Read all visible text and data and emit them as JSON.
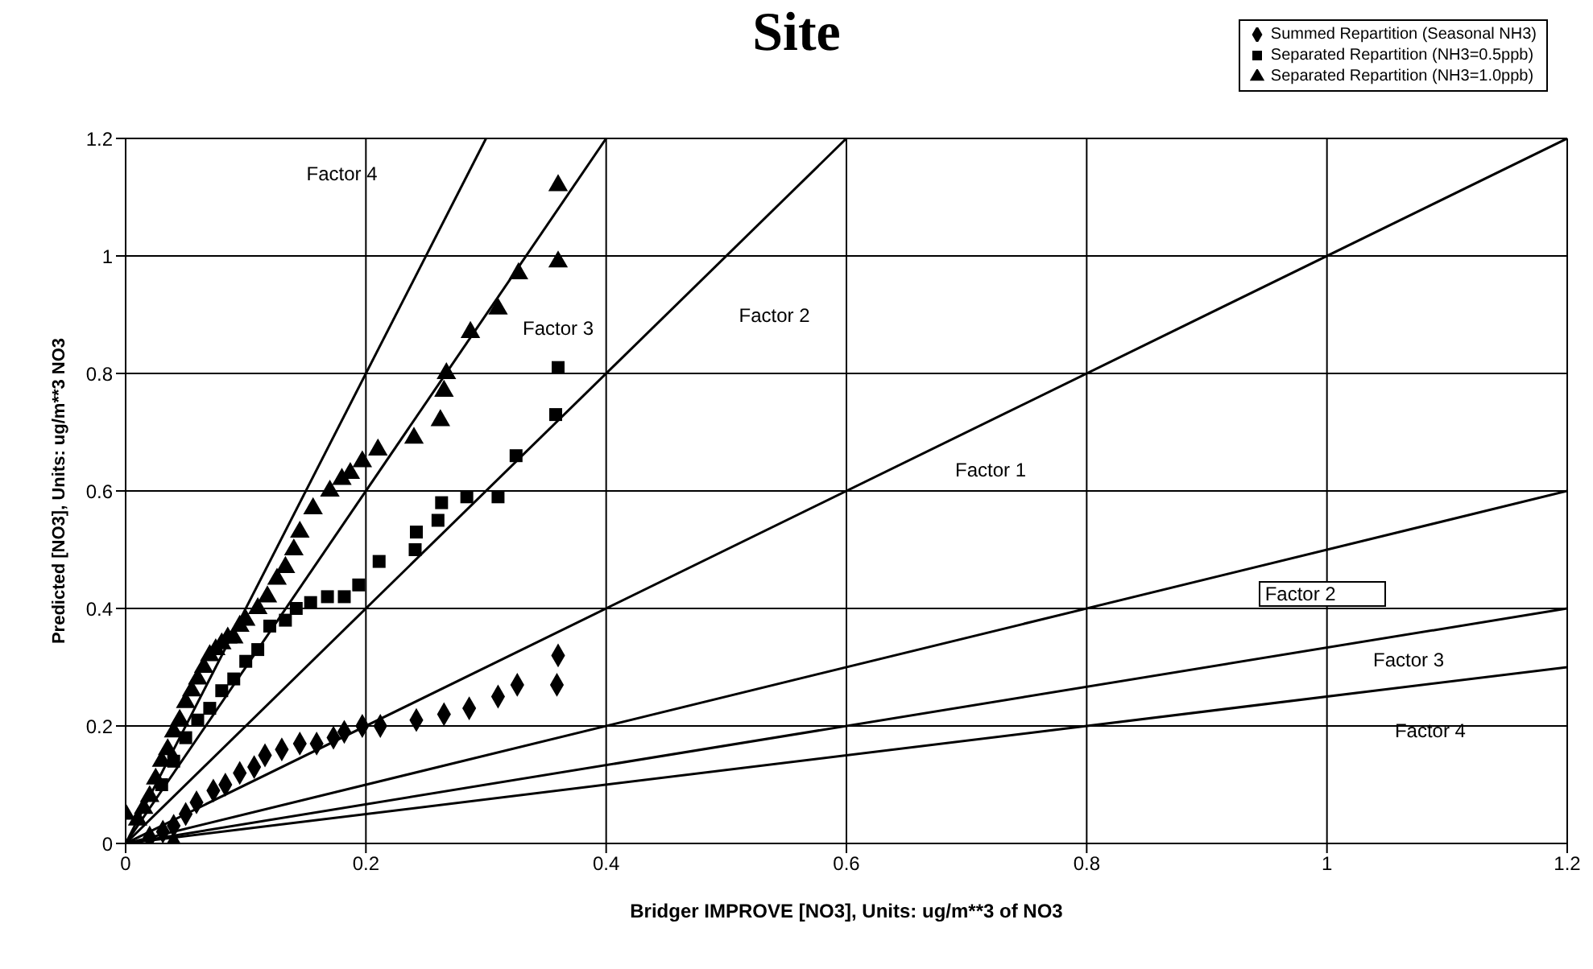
{
  "chart_data": {
    "type": "scatter",
    "title": "Site",
    "xlabel": "Bridger IMPROVE [NO3], Units: ug/m**3 of NO3",
    "ylabel": "Predicted [NO3], Units: ug/m**3 NO3",
    "xlim": [
      0,
      1.2
    ],
    "xticks": [
      0,
      0.2,
      0.4,
      0.6,
      0.8,
      1,
      1.2
    ],
    "ylim": [
      0,
      1.2
    ],
    "yticks": [
      0,
      0.2,
      0.4,
      0.6,
      0.8,
      1,
      1.2
    ],
    "grid": true,
    "legend": "top right",
    "series": [
      {
        "name": "Summed Repartition (Seasonal NH3)",
        "color": "#000000",
        "marker": "diamond",
        "x": [
          0.36,
          0.359,
          0.326,
          0.31,
          0.286,
          0.265,
          0.242,
          0.212,
          0.197,
          0.182,
          0.173,
          0.159,
          0.145,
          0.13,
          0.116,
          0.107,
          0.095,
          0.083,
          0.073,
          0.059,
          0.05,
          0.04,
          0.031,
          0.02,
          0.04
        ],
        "values": [
          0.32,
          0.27,
          0.27,
          0.25,
          0.23,
          0.22,
          0.21,
          0.2,
          0.2,
          0.19,
          0.18,
          0.17,
          0.17,
          0.16,
          0.15,
          0.13,
          0.12,
          0.1,
          0.09,
          0.07,
          0.05,
          0.03,
          0.02,
          0.01,
          0
        ]
      },
      {
        "name": "Separated Repartition (NH3=0.5ppb)",
        "color": "#000000",
        "marker": "square",
        "x": [
          0.36,
          0.358,
          0.325,
          0.31,
          0.284,
          0.263,
          0.26,
          0.242,
          0.241,
          0.211,
          0.194,
          0.182,
          0.168,
          0.154,
          0.142,
          0.133,
          0.12,
          0.11,
          0.1,
          0.09,
          0.08,
          0.07,
          0.06,
          0.05,
          0.04,
          0.03
        ],
        "values": [
          0.81,
          0.73,
          0.66,
          0.59,
          0.59,
          0.58,
          0.55,
          0.53,
          0.5,
          0.48,
          0.44,
          0.42,
          0.42,
          0.41,
          0.4,
          0.38,
          0.37,
          0.33,
          0.31,
          0.28,
          0.26,
          0.23,
          0.21,
          0.18,
          0.14,
          0.1
        ]
      },
      {
        "name": "Separated Repartition (NH3=1.0ppb)",
        "color": "#000000",
        "marker": "triangle",
        "x": [
          0.36,
          0.36,
          0.327,
          0.31,
          0.287,
          0.267,
          0.265,
          0.262,
          0.24,
          0.21,
          0.197,
          0.187,
          0.18,
          0.17,
          0.156,
          0.145,
          0.14,
          0.133,
          0.126,
          0.118,
          0.11,
          0.1,
          0.095,
          0.09,
          0.085,
          0.08,
          0.075,
          0.07,
          0.065,
          0.06,
          0.055,
          0.05,
          0.045,
          0.04,
          0.035,
          0.03,
          0.025,
          0.02,
          0.015,
          0.01,
          0
        ],
        "values": [
          1.12,
          0.99,
          0.97,
          0.91,
          0.87,
          0.8,
          0.77,
          0.72,
          0.69,
          0.67,
          0.65,
          0.63,
          0.62,
          0.6,
          0.57,
          0.53,
          0.5,
          0.47,
          0.45,
          0.42,
          0.4,
          0.38,
          0.37,
          0.35,
          0.35,
          0.34,
          0.33,
          0.32,
          0.3,
          0.28,
          0.26,
          0.24,
          0.21,
          0.19,
          0.16,
          0.14,
          0.11,
          0.08,
          0.06,
          0.04,
          0.05
        ]
      },
      {
        "type": "line",
        "color": "#000000",
        "x": [
          0,
          0.3
        ],
        "values": [
          0,
          1.2
        ]
      },
      {
        "type": "line",
        "color": "#000000",
        "x": [
          0,
          0.4
        ],
        "values": [
          0,
          1.2
        ]
      },
      {
        "type": "line",
        "color": "#000000",
        "x": [
          0,
          0.6
        ],
        "values": [
          0,
          1.2
        ]
      },
      {
        "type": "line",
        "color": "#000000",
        "x": [
          0,
          1.2
        ],
        "values": [
          0,
          1.2
        ]
      },
      {
        "type": "line",
        "color": "#000000",
        "x": [
          0,
          1.2
        ],
        "values": [
          0,
          0.6
        ]
      },
      {
        "type": "line",
        "color": "#000000",
        "x": [
          0,
          1.2
        ],
        "values": [
          0,
          0.4
        ]
      },
      {
        "type": "line",
        "color": "#000000",
        "x": [
          0,
          1.2
        ],
        "values": [
          0,
          0.3
        ]
      }
    ],
    "annotations": [
      "Factor 4",
      "Factor 3",
      "Factor 2",
      "Factor 1",
      "Factor 2",
      "Factor 3",
      "Factor 4"
    ]
  }
}
